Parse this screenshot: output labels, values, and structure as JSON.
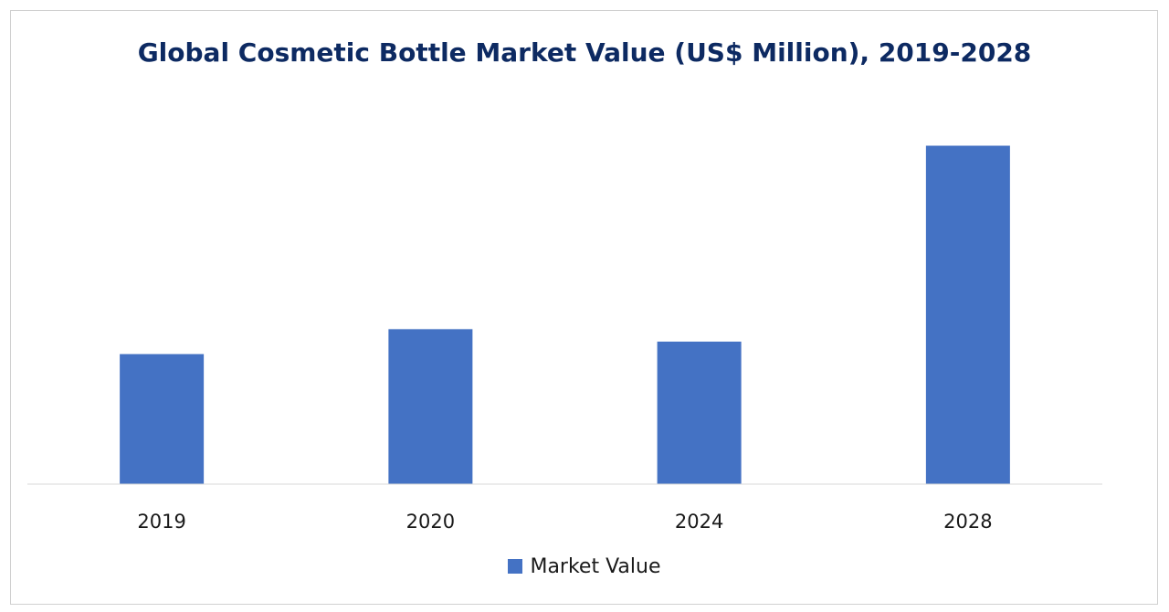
{
  "colors": {
    "bar": "#4472c4",
    "title": "#0d2a62",
    "axis": "#d9d9d9"
  },
  "chart_data": {
    "type": "bar",
    "title": "Global Cosmetic Bottle Market Value (US$ Million), 2019-2028",
    "xlabel": "",
    "ylabel": "",
    "categories": [
      "2019",
      "2020",
      "2024",
      "2028"
    ],
    "series": [
      {
        "name": "Market Value",
        "values": [
          36.5,
          43.5,
          40.0,
          95.0
        ]
      }
    ],
    "ylim": [
      0,
      100
    ],
    "grid": false,
    "legend_position": "bottom"
  }
}
